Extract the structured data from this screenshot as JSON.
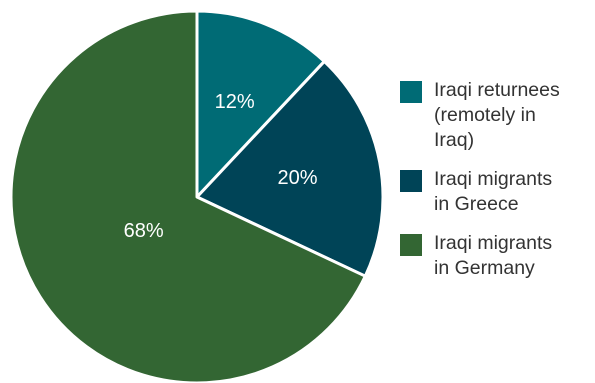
{
  "chart_data": {
    "type": "pie",
    "start_angle_deg": 0,
    "direction": "clockwise",
    "slices": [
      {
        "label": "Iraqi returnees\n(remotely in\nIraq)",
        "value": 12,
        "display": "12%",
        "color": "#006b75"
      },
      {
        "label": "Iraqi migrants\nin Greece",
        "value": 20,
        "display": "20%",
        "color": "#004457"
      },
      {
        "label": "Iraqi migrants\nin Germany",
        "value": 68,
        "display": "68%",
        "color": "#336633"
      }
    ],
    "legend_position": "right"
  }
}
